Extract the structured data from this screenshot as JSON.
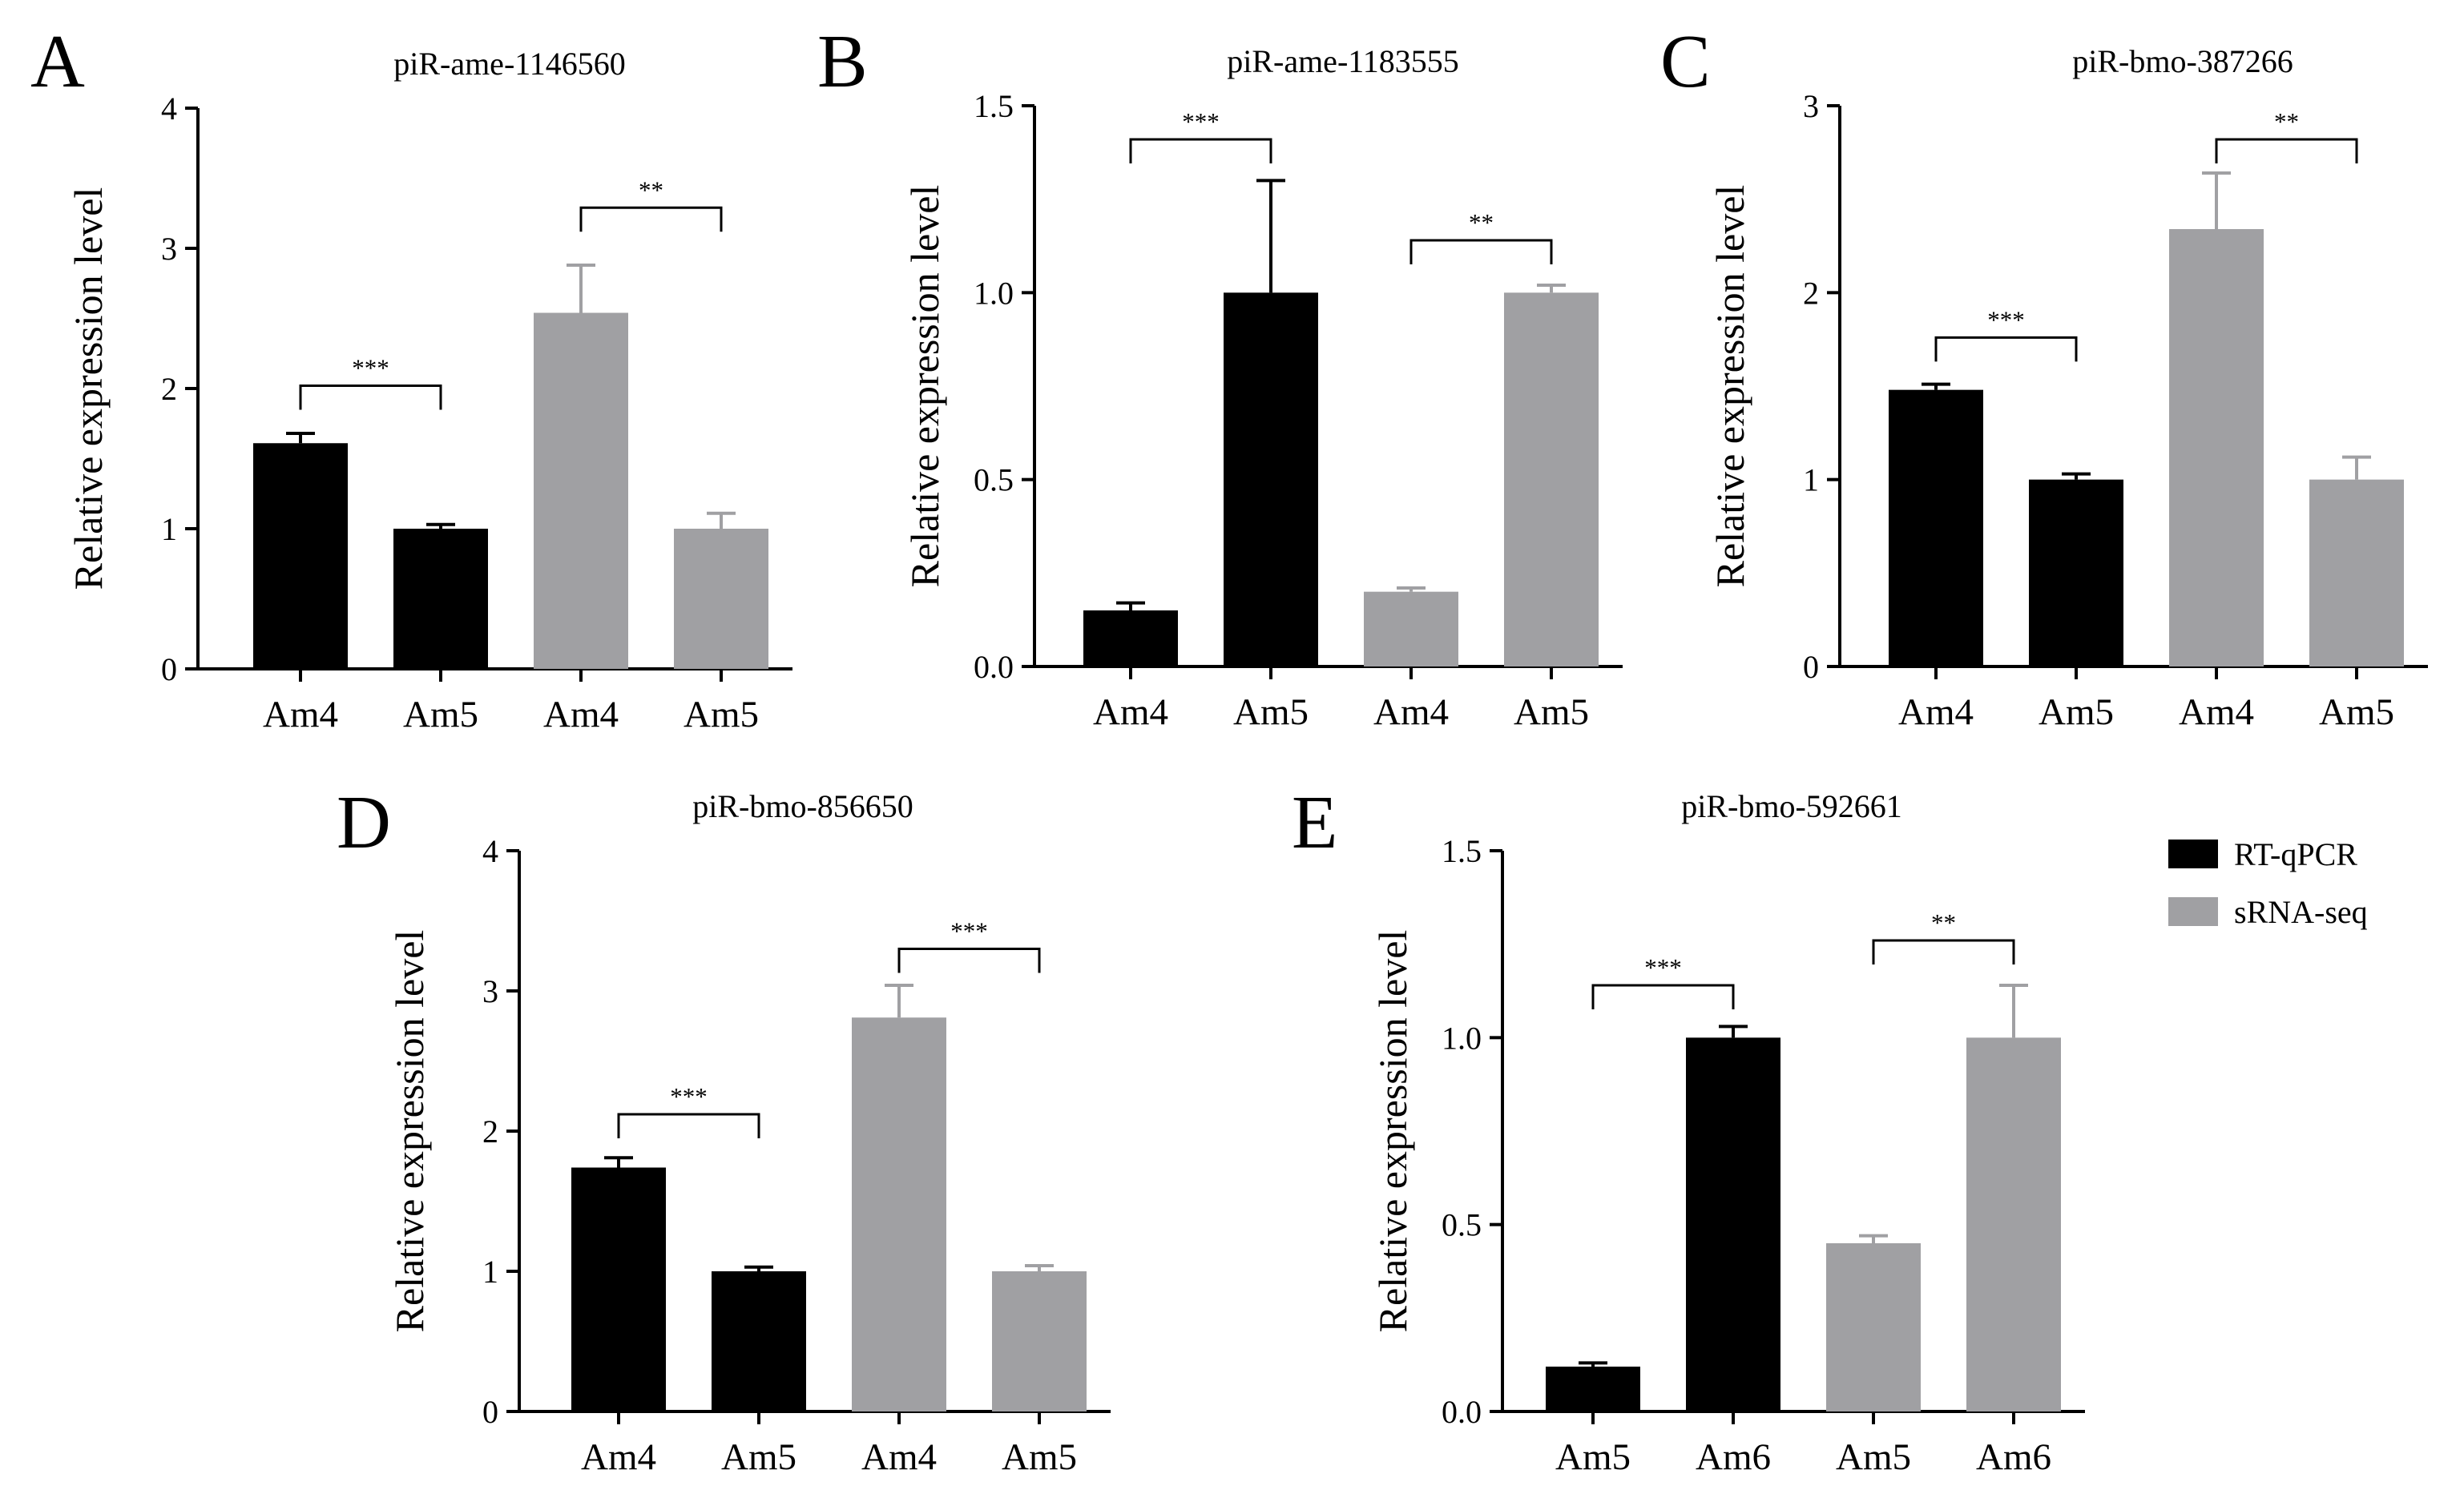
{
  "legend": {
    "items": [
      {
        "label": "RT-qPCR",
        "color": "#000000"
      },
      {
        "label": "sRNA-seq",
        "color": "#a0a0a3"
      }
    ]
  },
  "chart_data": [
    {
      "type": "bar",
      "panel": "A",
      "title": "piR-ame-1146560",
      "xlabel": "",
      "ylabel": "Relative expression level",
      "ylim": [
        0,
        4
      ],
      "yticks": [
        0,
        1,
        2,
        3,
        4
      ],
      "categories": [
        "Am4",
        "Am5",
        "Am4",
        "Am5"
      ],
      "series_of_bar": [
        "RT-qPCR",
        "RT-qPCR",
        "sRNA-seq",
        "sRNA-seq"
      ],
      "values": [
        1.61,
        1.0,
        2.54,
        1.0
      ],
      "errors": [
        0.07,
        0.03,
        0.34,
        0.11
      ],
      "significance": [
        {
          "from": 0,
          "to": 1,
          "label": "***",
          "level": 2.02
        },
        {
          "from": 2,
          "to": 3,
          "label": "**",
          "level": 3.29
        }
      ]
    },
    {
      "type": "bar",
      "panel": "B",
      "title": "piR-ame-1183555",
      "xlabel": "",
      "ylabel": "Relative expression level",
      "ylim": [
        0,
        1.5
      ],
      "yticks": [
        0.0,
        0.5,
        1.0,
        1.5
      ],
      "tick_format": "0.0",
      "categories": [
        "Am4",
        "Am5",
        "Am4",
        "Am5"
      ],
      "series_of_bar": [
        "RT-qPCR",
        "RT-qPCR",
        "sRNA-seq",
        "sRNA-seq"
      ],
      "values": [
        0.15,
        1.0,
        0.2,
        1.0
      ],
      "errors": [
        0.02,
        0.3,
        0.01,
        0.02
      ],
      "significance": [
        {
          "from": 0,
          "to": 1,
          "label": "***",
          "level": 1.41
        },
        {
          "from": 2,
          "to": 3,
          "label": "**",
          "level": 1.14
        }
      ]
    },
    {
      "type": "bar",
      "panel": "C",
      "title": "piR-bmo-387266",
      "xlabel": "",
      "ylabel": "Relative expression level",
      "ylim": [
        0,
        3
      ],
      "yticks": [
        0,
        1,
        2,
        3
      ],
      "categories": [
        "Am4",
        "Am5",
        "Am4",
        "Am5"
      ],
      "series_of_bar": [
        "RT-qPCR",
        "RT-qPCR",
        "sRNA-seq",
        "sRNA-seq"
      ],
      "values": [
        1.48,
        1.0,
        2.34,
        1.0
      ],
      "errors": [
        0.03,
        0.03,
        0.3,
        0.12
      ],
      "significance": [
        {
          "from": 0,
          "to": 1,
          "label": "***",
          "level": 1.76
        },
        {
          "from": 2,
          "to": 3,
          "label": "**",
          "level": 2.82
        }
      ]
    },
    {
      "type": "bar",
      "panel": "D",
      "title": "piR-bmo-856650",
      "xlabel": "",
      "ylabel": "Relative expression level",
      "ylim": [
        0,
        4
      ],
      "yticks": [
        0,
        1,
        2,
        3,
        4
      ],
      "categories": [
        "Am4",
        "Am5",
        "Am4",
        "Am5"
      ],
      "series_of_bar": [
        "RT-qPCR",
        "RT-qPCR",
        "sRNA-seq",
        "sRNA-seq"
      ],
      "values": [
        1.74,
        1.0,
        2.81,
        1.0
      ],
      "errors": [
        0.07,
        0.03,
        0.23,
        0.04
      ],
      "significance": [
        {
          "from": 0,
          "to": 1,
          "label": "***",
          "level": 2.12
        },
        {
          "from": 2,
          "to": 3,
          "label": "***",
          "level": 3.3
        }
      ]
    },
    {
      "type": "bar",
      "panel": "E",
      "title": "piR-bmo-592661",
      "xlabel": "",
      "ylabel": "Relative expression level",
      "ylim": [
        0,
        1.5
      ],
      "yticks": [
        0.0,
        0.5,
        1.0,
        1.5
      ],
      "tick_format": "0.0",
      "categories": [
        "Am5",
        "Am6",
        "Am5",
        "Am6"
      ],
      "series_of_bar": [
        "RT-qPCR",
        "RT-qPCR",
        "sRNA-seq",
        "sRNA-seq"
      ],
      "values": [
        0.12,
        1.0,
        0.45,
        1.0
      ],
      "errors": [
        0.01,
        0.03,
        0.02,
        0.14
      ],
      "significance": [
        {
          "from": 0,
          "to": 1,
          "label": "***",
          "level": 1.14
        },
        {
          "from": 2,
          "to": 3,
          "label": "**",
          "level": 1.26
        }
      ]
    }
  ]
}
